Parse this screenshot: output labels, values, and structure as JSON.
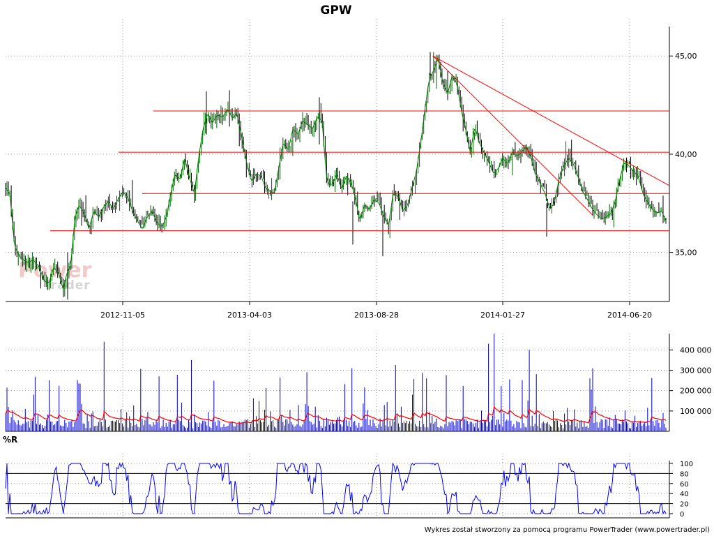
{
  "chart_data": [
    {
      "type": "candlestick",
      "title": "GPW",
      "x_ticks": [
        "2012-11-05",
        "2013-04-03",
        "2013-08-28",
        "2014-01-27",
        "2014-06-20"
      ],
      "y_ticks": [
        "35,00",
        "40,00",
        "45,00"
      ],
      "ylim": [
        32.5,
        46.5
      ],
      "grid": true,
      "price_path": [
        [
          0,
          38.3
        ],
        [
          6,
          38.0
        ],
        [
          13,
          35.3
        ],
        [
          22,
          34.7
        ],
        [
          31,
          34.5
        ],
        [
          40,
          34.6
        ],
        [
          48,
          34.3
        ],
        [
          55,
          33.6
        ],
        [
          62,
          33.4
        ],
        [
          69,
          34.2
        ],
        [
          76,
          34.0
        ],
        [
          83,
          33.1
        ],
        [
          88,
          33.9
        ],
        [
          94,
          34.4
        ],
        [
          100,
          36.8
        ],
        [
          106,
          37.4
        ],
        [
          113,
          37.0
        ],
        [
          120,
          36.2
        ],
        [
          127,
          37.1
        ],
        [
          134,
          36.8
        ],
        [
          141,
          37.3
        ],
        [
          148,
          37.6
        ],
        [
          155,
          37.2
        ],
        [
          162,
          37.7
        ],
        [
          169,
          38.1
        ],
        [
          176,
          37.8
        ],
        [
          183,
          37.1
        ],
        [
          190,
          36.6
        ],
        [
          197,
          36.2
        ],
        [
          204,
          36.8
        ],
        [
          211,
          37.1
        ],
        [
          218,
          36.5
        ],
        [
          226,
          36.3
        ],
        [
          232,
          36.9
        ],
        [
          238,
          38.0
        ],
        [
          244,
          39.0
        ],
        [
          251,
          38.7
        ],
        [
          258,
          39.8
        ],
        [
          264,
          38.9
        ],
        [
          272,
          38.0
        ],
        [
          278,
          39.8
        ],
        [
          284,
          41.2
        ],
        [
          291,
          42.1
        ],
        [
          298,
          41.6
        ],
        [
          305,
          42.0
        ],
        [
          313,
          41.9
        ],
        [
          320,
          42.3
        ],
        [
          327,
          41.8
        ],
        [
          333,
          42.1
        ],
        [
          340,
          40.9
        ],
        [
          347,
          39.6
        ],
        [
          354,
          38.6
        ],
        [
          361,
          39.0
        ],
        [
          368,
          38.9
        ],
        [
          374,
          38.3
        ],
        [
          381,
          38.1
        ],
        [
          387,
          38.0
        ],
        [
          394,
          39.4
        ],
        [
          400,
          40.6
        ],
        [
          407,
          40.2
        ],
        [
          414,
          41.3
        ],
        [
          421,
          41.0
        ],
        [
          428,
          41.7
        ],
        [
          435,
          41.5
        ],
        [
          442,
          41.3
        ],
        [
          449,
          41.9
        ],
        [
          456,
          41.7
        ],
        [
          459,
          40.2
        ],
        [
          463,
          38.6
        ],
        [
          470,
          38.4
        ],
        [
          477,
          39.0
        ],
        [
          484,
          38.2
        ],
        [
          491,
          38.9
        ],
        [
          498,
          38.5
        ],
        [
          505,
          37.6
        ],
        [
          510,
          36.6
        ],
        [
          517,
          37.4
        ],
        [
          524,
          37.2
        ],
        [
          531,
          37.7
        ],
        [
          538,
          37.5
        ],
        [
          545,
          36.8
        ],
        [
          552,
          36.4
        ],
        [
          558,
          38.0
        ],
        [
          565,
          37.9
        ],
        [
          572,
          37.1
        ],
        [
          579,
          37.4
        ],
        [
          585,
          38.2
        ],
        [
          592,
          39.2
        ],
        [
          598,
          40.6
        ],
        [
          604,
          42.3
        ],
        [
          610,
          43.8
        ],
        [
          617,
          44.3
        ],
        [
          623,
          44.9
        ],
        [
          630,
          43.6
        ],
        [
          637,
          43.1
        ],
        [
          643,
          44.0
        ],
        [
          650,
          43.6
        ],
        [
          656,
          42.3
        ],
        [
          663,
          41.2
        ],
        [
          669,
          40.1
        ],
        [
          676,
          41.4
        ],
        [
          682,
          40.6
        ],
        [
          689,
          40.1
        ],
        [
          696,
          39.6
        ],
        [
          703,
          39.0
        ],
        [
          710,
          39.3
        ],
        [
          716,
          39.8
        ],
        [
          723,
          39.5
        ],
        [
          730,
          40.1
        ],
        [
          737,
          39.9
        ],
        [
          743,
          40.1
        ],
        [
          750,
          40.4
        ],
        [
          756,
          39.9
        ],
        [
          763,
          39.0
        ],
        [
          770,
          38.5
        ],
        [
          777,
          38.0
        ],
        [
          784,
          37.2
        ],
        [
          790,
          37.5
        ],
        [
          797,
          38.7
        ],
        [
          804,
          39.4
        ],
        [
          811,
          39.8
        ],
        [
          818,
          39.5
        ],
        [
          825,
          38.8
        ],
        [
          831,
          38.1
        ],
        [
          838,
          37.7
        ],
        [
          845,
          37.2
        ],
        [
          852,
          36.9
        ],
        [
          858,
          36.7
        ],
        [
          865,
          36.8
        ],
        [
          872,
          37.0
        ],
        [
          878,
          37.6
        ],
        [
          885,
          38.8
        ],
        [
          891,
          39.6
        ],
        [
          898,
          39.4
        ],
        [
          905,
          39.1
        ],
        [
          911,
          38.9
        ],
        [
          918,
          38.0
        ],
        [
          924,
          37.6
        ],
        [
          931,
          37.2
        ],
        [
          938,
          37.0
        ],
        [
          945,
          37.1
        ],
        [
          951,
          36.6
        ],
        [
          955,
          36.3
        ]
      ],
      "support_resistance_lines": [
        {
          "level": 42.2,
          "x_from": 220,
          "x_to": 960
        },
        {
          "level": 40.1,
          "x_from": 170,
          "x_to": 960
        },
        {
          "level": 38.0,
          "x_from": 204,
          "x_to": 960
        },
        {
          "level": 36.1,
          "x_from": 72,
          "x_to": 960
        }
      ],
      "trend_lines": [
        {
          "x1": 621,
          "y1": 45.0,
          "x2": 960,
          "y2": 38.4
        },
        {
          "x1": 621,
          "y1": 45.0,
          "x2": 850,
          "y2": 36.9
        }
      ],
      "colors": {
        "up": "#008000",
        "down": "#000000",
        "lines": "#ff0000"
      }
    },
    {
      "type": "bar",
      "name": "volume",
      "y_ticks": [
        "100 000",
        "200 000",
        "300 000",
        "400 000"
      ],
      "ylim": [
        0,
        480000
      ],
      "colors": {
        "bars": "#0000cc",
        "average": "#ff0000"
      }
    },
    {
      "type": "line",
      "title": "%R",
      "y_ticks": [
        "0",
        "20",
        "40",
        "60",
        "80",
        "100"
      ],
      "ylim": [
        0,
        100
      ],
      "reference_lines": [
        20,
        80
      ],
      "colors": {
        "line": "#0000ff"
      }
    }
  ],
  "watermark": {
    "line1": "Power",
    "line2": "Trader"
  },
  "footer": "Wykres został stworzony za pomocą programu PowerTrader (www.powertrader.pl)"
}
